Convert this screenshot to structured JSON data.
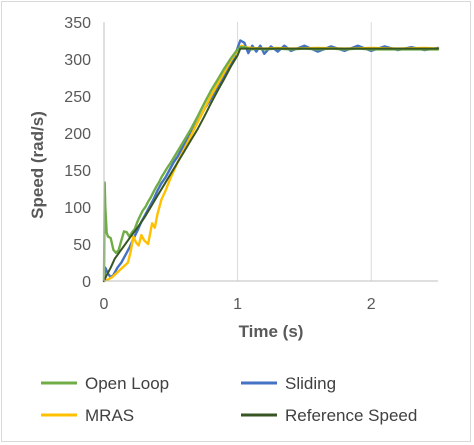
{
  "chart_data": {
    "type": "line",
    "title": "",
    "xlabel": "Time (s)",
    "ylabel": "Speed (rad/s)",
    "xlim": [
      0,
      2.5
    ],
    "ylim": [
      0,
      350
    ],
    "xticks": [
      0,
      1,
      2
    ],
    "xtick_labels": [
      "0",
      "1",
      "2"
    ],
    "yticks": [
      0,
      50,
      100,
      150,
      200,
      250,
      300,
      350
    ],
    "ytick_labels": [
      "0",
      "50",
      "100",
      "150",
      "200",
      "250",
      "300",
      "350"
    ],
    "grid": "vertical gridlines",
    "legend_position": "bottom",
    "series": [
      {
        "name": "Open Loop",
        "color": "#70AD47",
        "x": [
          0,
          0.005,
          0.01,
          0.02,
          0.03,
          0.05,
          0.07,
          0.09,
          0.11,
          0.13,
          0.15,
          0.17,
          0.19,
          0.21,
          0.23,
          0.25,
          0.27,
          0.29,
          0.31,
          0.33,
          0.35,
          0.37,
          0.39,
          0.41,
          0.43,
          0.45,
          0.47,
          0.5,
          0.55,
          0.6,
          0.65,
          0.7,
          0.75,
          0.8,
          0.85,
          0.9,
          0.95,
          1.0,
          1.02,
          1.05,
          1.1,
          1.15,
          1.2,
          1.3,
          1.4,
          1.5,
          1.6,
          1.7,
          1.8,
          1.9,
          2.0,
          2.2,
          2.4,
          2.5
        ],
        "y": [
          0,
          133,
          100,
          65,
          60,
          58,
          42,
          38,
          42,
          55,
          67,
          66,
          60,
          66,
          70,
          80,
          88,
          95,
          100,
          107,
          113,
          120,
          127,
          133,
          140,
          146,
          152,
          160,
          175,
          190,
          205,
          222,
          240,
          257,
          272,
          287,
          301,
          313,
          316,
          316,
          313,
          314,
          313,
          314,
          313,
          314,
          313,
          314,
          313,
          314,
          313,
          313,
          313,
          313
        ]
      },
      {
        "name": "Sliding",
        "color": "#4472C4",
        "x": [
          0,
          0.01,
          0.03,
          0.05,
          0.07,
          0.1,
          0.13,
          0.16,
          0.19,
          0.22,
          0.25,
          0.28,
          0.31,
          0.34,
          0.37,
          0.4,
          0.43,
          0.46,
          0.49,
          0.52,
          0.55,
          0.58,
          0.61,
          0.64,
          0.67,
          0.7,
          0.73,
          0.76,
          0.79,
          0.82,
          0.85,
          0.88,
          0.91,
          0.94,
          0.97,
          1.0,
          1.02,
          1.05,
          1.08,
          1.11,
          1.14,
          1.17,
          1.2,
          1.25,
          1.3,
          1.35,
          1.4,
          1.5,
          1.6,
          1.7,
          1.8,
          1.9,
          2.0,
          2.1,
          2.2,
          2.3,
          2.4,
          2.5
        ],
        "y": [
          0,
          18,
          10,
          5,
          8,
          18,
          25,
          35,
          45,
          57,
          68,
          80,
          90,
          100,
          110,
          122,
          132,
          140,
          150,
          160,
          168,
          178,
          188,
          198,
          205,
          215,
          225,
          235,
          243,
          253,
          262,
          272,
          282,
          290,
          300,
          315,
          325,
          322,
          308,
          318,
          310,
          318,
          307,
          317,
          310,
          318,
          311,
          318,
          310,
          317,
          311,
          318,
          311,
          317,
          312,
          316,
          312,
          315
        ]
      },
      {
        "name": "MRAS",
        "color": "#FFC000",
        "x": [
          0,
          0.03,
          0.06,
          0.09,
          0.12,
          0.15,
          0.18,
          0.2,
          0.22,
          0.24,
          0.26,
          0.28,
          0.3,
          0.33,
          0.36,
          0.38,
          0.4,
          0.43,
          0.46,
          0.5,
          0.55,
          0.6,
          0.65,
          0.7,
          0.75,
          0.8,
          0.85,
          0.9,
          0.95,
          1.0,
          1.03,
          1.06,
          1.1,
          1.2,
          1.3,
          1.4,
          1.6,
          1.8,
          2.0,
          2.2,
          2.4,
          2.5
        ],
        "y": [
          0,
          2,
          5,
          10,
          15,
          20,
          25,
          40,
          60,
          52,
          48,
          62,
          55,
          50,
          78,
          72,
          90,
          110,
          122,
          140,
          160,
          178,
          196,
          214,
          232,
          250,
          266,
          282,
          298,
          312,
          318,
          316,
          315,
          314,
          315,
          314,
          315,
          314,
          315,
          314,
          315,
          314
        ]
      },
      {
        "name": "Reference Speed",
        "color": "#375623",
        "x": [
          0,
          0.02,
          0.05,
          0.08,
          0.12,
          0.16,
          0.2,
          0.25,
          0.3,
          0.35,
          0.4,
          0.45,
          0.5,
          0.55,
          0.6,
          0.65,
          0.7,
          0.75,
          0.8,
          0.85,
          0.9,
          0.95,
          1.0,
          1.02,
          1.1,
          1.5,
          2.0,
          2.5
        ],
        "y": [
          0,
          8,
          18,
          30,
          40,
          50,
          60,
          72,
          85,
          100,
          115,
          130,
          145,
          160,
          175,
          190,
          205,
          222,
          240,
          257,
          273,
          290,
          305,
          314,
          314,
          314,
          314,
          314
        ]
      }
    ]
  }
}
